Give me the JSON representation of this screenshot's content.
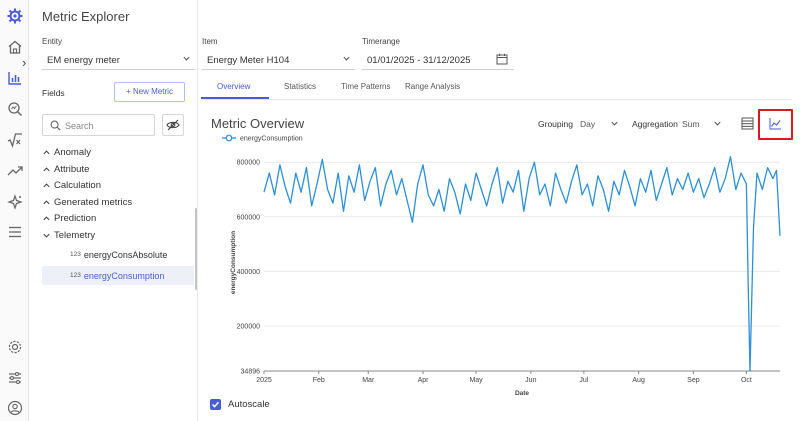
{
  "app": {
    "title": "Metric Explorer"
  },
  "rail": {
    "icons": [
      "gear-logo-icon",
      "home-icon",
      "bar-chart-icon",
      "analyze-icon",
      "sqrt-icon",
      "trend-icon",
      "sparkle-icon",
      "menu-icon",
      "settings-icon",
      "sliders-icon",
      "user-icon"
    ],
    "expand_glyph": "›"
  },
  "selectors": {
    "entity": {
      "label": "Entity",
      "value": "EM energy meter"
    },
    "item": {
      "label": "Item",
      "value": "Energy Meter H104"
    },
    "timerange": {
      "label": "Timerange",
      "value": "01/01/2025 - 31/12/2025"
    }
  },
  "fields": {
    "label": "Fields",
    "new_metric_label": "+ New Metric",
    "search_placeholder": "Search",
    "groups": [
      "Anomaly",
      "Attribute",
      "Calculation",
      "Generated metrics",
      "Prediction",
      "Telemetry"
    ],
    "telemetry_items": [
      {
        "type_badge": "123",
        "label": "energyConsAbsolute",
        "selected": false
      },
      {
        "type_badge": "123",
        "label": "energyConsumption",
        "selected": true
      }
    ]
  },
  "tabs": [
    "Overview",
    "Statistics",
    "Time Patterns",
    "Range Analysis"
  ],
  "chart_panel": {
    "title": "Metric Overview",
    "grouping_label": "Grouping",
    "grouping_value": "Day",
    "aggregation_label": "Aggregation",
    "aggregation_value": "Sum",
    "autoscale_label": "Autoscale",
    "autoscale_checked": true
  },
  "chart_data": {
    "type": "line",
    "xlabel": "Date",
    "ylabel": "energyConsumption",
    "x_range": [
      "2025-01-01",
      "2025-10-20"
    ],
    "ylim": [
      34896,
      830000
    ],
    "y_ticks": [
      "800000",
      "600000",
      "400000",
      "200000",
      "34896"
    ],
    "y_tick_values": [
      800000,
      600000,
      400000,
      200000,
      34896
    ],
    "x_ticks": [
      "2025",
      "Feb",
      "Mar",
      "Apr",
      "May",
      "Jun",
      "Jul",
      "Aug",
      "Sep",
      "Oct"
    ],
    "x_tick_dates": [
      "2025-01-01",
      "2025-02-01",
      "2025-03-01",
      "2025-04-01",
      "2025-05-01",
      "2025-06-01",
      "2025-07-01",
      "2025-08-01",
      "2025-09-01",
      "2025-10-01"
    ],
    "series": [
      {
        "name": "energyConsumption",
        "color": "#2d8fd5",
        "points": [
          [
            "2025-01-01",
            690000
          ],
          [
            "2025-01-04",
            760000
          ],
          [
            "2025-01-07",
            680000
          ],
          [
            "2025-01-10",
            790000
          ],
          [
            "2025-01-13",
            710000
          ],
          [
            "2025-01-16",
            650000
          ],
          [
            "2025-01-19",
            760000
          ],
          [
            "2025-01-22",
            690000
          ],
          [
            "2025-01-25",
            780000
          ],
          [
            "2025-01-28",
            640000
          ],
          [
            "2025-01-31",
            720000
          ],
          [
            "2025-02-03",
            810000
          ],
          [
            "2025-02-06",
            700000
          ],
          [
            "2025-02-09",
            650000
          ],
          [
            "2025-02-12",
            760000
          ],
          [
            "2025-02-15",
            620000
          ],
          [
            "2025-02-18",
            750000
          ],
          [
            "2025-02-21",
            690000
          ],
          [
            "2025-02-24",
            790000
          ],
          [
            "2025-02-27",
            660000
          ],
          [
            "2025-03-02",
            730000
          ],
          [
            "2025-03-05",
            780000
          ],
          [
            "2025-03-08",
            640000
          ],
          [
            "2025-03-11",
            720000
          ],
          [
            "2025-03-14",
            770000
          ],
          [
            "2025-03-17",
            680000
          ],
          [
            "2025-03-20",
            740000
          ],
          [
            "2025-03-23",
            660000
          ],
          [
            "2025-03-26",
            580000
          ],
          [
            "2025-03-29",
            720000
          ],
          [
            "2025-04-01",
            790000
          ],
          [
            "2025-04-04",
            680000
          ],
          [
            "2025-04-07",
            640000
          ],
          [
            "2025-04-10",
            700000
          ],
          [
            "2025-04-13",
            620000
          ],
          [
            "2025-04-16",
            740000
          ],
          [
            "2025-04-19",
            690000
          ],
          [
            "2025-04-22",
            610000
          ],
          [
            "2025-04-25",
            720000
          ],
          [
            "2025-04-28",
            660000
          ],
          [
            "2025-05-01",
            760000
          ],
          [
            "2025-05-04",
            700000
          ],
          [
            "2025-05-07",
            640000
          ],
          [
            "2025-05-10",
            720000
          ],
          [
            "2025-05-13",
            780000
          ],
          [
            "2025-05-16",
            650000
          ],
          [
            "2025-05-19",
            730000
          ],
          [
            "2025-05-22",
            690000
          ],
          [
            "2025-05-25",
            770000
          ],
          [
            "2025-05-28",
            620000
          ],
          [
            "2025-05-31",
            740000
          ],
          [
            "2025-06-03",
            800000
          ],
          [
            "2025-06-06",
            680000
          ],
          [
            "2025-06-09",
            720000
          ],
          [
            "2025-06-12",
            640000
          ],
          [
            "2025-06-15",
            760000
          ],
          [
            "2025-06-18",
            700000
          ],
          [
            "2025-06-21",
            650000
          ],
          [
            "2025-06-24",
            730000
          ],
          [
            "2025-06-27",
            790000
          ],
          [
            "2025-06-30",
            680000
          ],
          [
            "2025-07-03",
            720000
          ],
          [
            "2025-07-06",
            640000
          ],
          [
            "2025-07-09",
            750000
          ],
          [
            "2025-07-12",
            700000
          ],
          [
            "2025-07-15",
            620000
          ],
          [
            "2025-07-18",
            730000
          ],
          [
            "2025-07-21",
            680000
          ],
          [
            "2025-07-24",
            770000
          ],
          [
            "2025-07-27",
            710000
          ],
          [
            "2025-07-30",
            640000
          ],
          [
            "2025-08-02",
            740000
          ],
          [
            "2025-08-05",
            690000
          ],
          [
            "2025-08-08",
            770000
          ],
          [
            "2025-08-11",
            660000
          ],
          [
            "2025-08-14",
            720000
          ],
          [
            "2025-08-17",
            780000
          ],
          [
            "2025-08-20",
            680000
          ],
          [
            "2025-08-23",
            740000
          ],
          [
            "2025-08-26",
            700000
          ],
          [
            "2025-08-29",
            760000
          ],
          [
            "2025-09-01",
            690000
          ],
          [
            "2025-09-04",
            740000
          ],
          [
            "2025-09-07",
            670000
          ],
          [
            "2025-09-10",
            720000
          ],
          [
            "2025-09-13",
            780000
          ],
          [
            "2025-09-16",
            690000
          ],
          [
            "2025-09-19",
            740000
          ],
          [
            "2025-09-22",
            820000
          ],
          [
            "2025-09-25",
            700000
          ],
          [
            "2025-09-28",
            760000
          ],
          [
            "2025-10-01",
            720000
          ],
          [
            "2025-10-02",
            350000
          ],
          [
            "2025-10-03",
            34896
          ],
          [
            "2025-10-05",
            560000
          ],
          [
            "2025-10-07",
            760000
          ],
          [
            "2025-10-10",
            700000
          ],
          [
            "2025-10-13",
            780000
          ],
          [
            "2025-10-16",
            740000
          ],
          [
            "2025-10-18",
            770000
          ],
          [
            "2025-10-20",
            530000
          ]
        ]
      }
    ],
    "legend": "top-left",
    "grid": "horizontal"
  }
}
